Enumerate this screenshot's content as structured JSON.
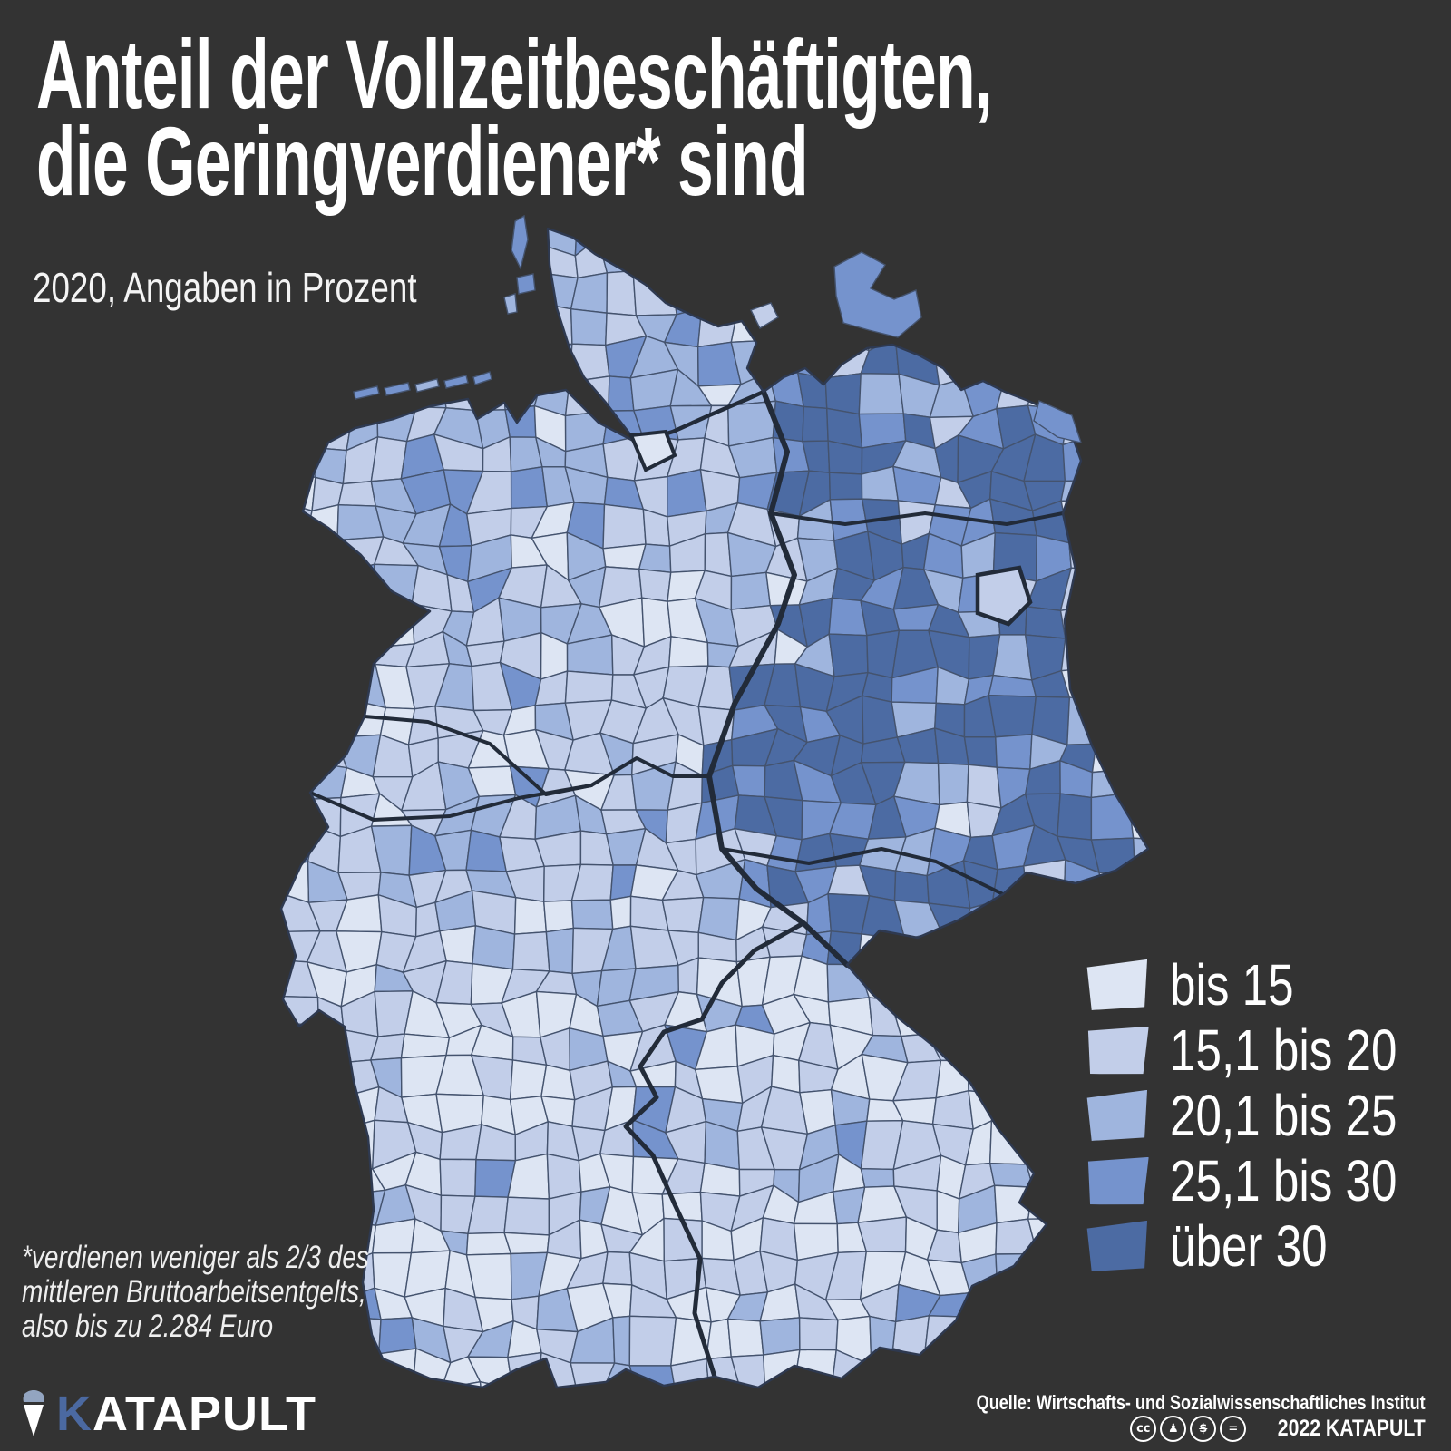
{
  "title": {
    "line1": "Anteil der Vollzeitbeschäftigten,",
    "line2": "die Geringverdiener* sind"
  },
  "subtitle": "2020, Angaben in Prozent",
  "legend": {
    "classes": [
      {
        "label": "bis 15",
        "color": "#dde5f3"
      },
      {
        "label": "15,1 bis 20",
        "color": "#c2cee9"
      },
      {
        "label": "20,1 bis 25",
        "color": "#9fb5de"
      },
      {
        "label": "25,1 bis 30",
        "color": "#7593cd"
      },
      {
        "label": "über 30",
        "color": "#4c6ba3"
      }
    ]
  },
  "map": {
    "background": "#333333",
    "border_thin": "#44536e",
    "border_thick": "#222b39",
    "outline": "#2e3950"
  },
  "footnote": {
    "line1": "*verdienen weniger als 2/3 des",
    "line2": "mittleren Bruttoarbeitsentgelts,",
    "line3": "also bis zu 2.284 Euro"
  },
  "footer": {
    "brand_k": "K",
    "brand_rest": "ATAPULT",
    "source": "Quelle: Wirtschafts- und Sozialwissenschaftliches Institut",
    "license": "2022 KATAPULT",
    "license_icons": [
      "cc",
      "by",
      "nc",
      "nd"
    ]
  }
}
